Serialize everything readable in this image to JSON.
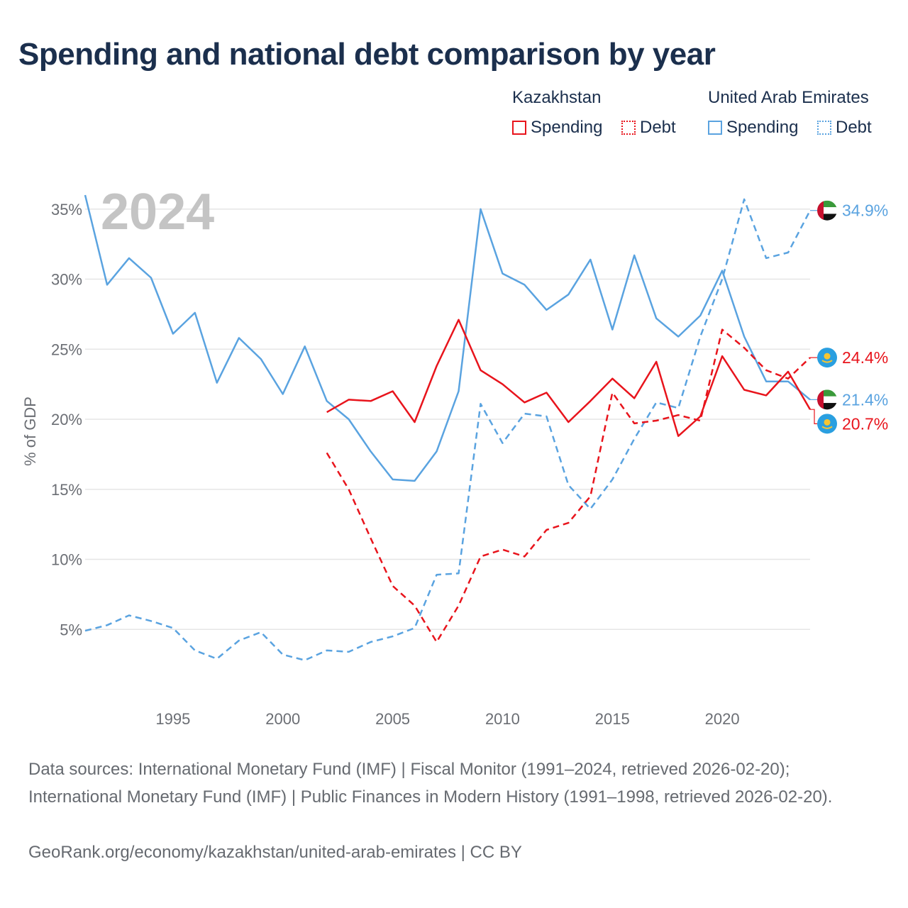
{
  "title": "Spending and national debt comparison by year",
  "legend": {
    "groups": [
      {
        "country": "Kazakhstan",
        "spending_label": "Spending",
        "debt_label": "Debt",
        "color": "#e8141c"
      },
      {
        "country": "United Arab Emirates",
        "spending_label": "Spending",
        "debt_label": "Debt",
        "color": "#5aa3e0"
      }
    ]
  },
  "footer": {
    "sources": "Data sources: International Monetary Fund (IMF) | Fiscal Monitor (1991–2024, retrieved 2026-02-20); International Monetary Fund (IMF) | Public Finances in Modern History (1991–1998, retrieved 2026-02-20).",
    "credit": "GeoRank.org/economy/kazakhstan/united-arab-emirates | CC BY"
  },
  "chart_data": {
    "type": "line",
    "year_watermark": "2024",
    "ylabel": "% of GDP",
    "xlabel": "",
    "xlim": [
      1991,
      2024
    ],
    "ylim": [
      0,
      37
    ],
    "x_ticks": [
      1995,
      2000,
      2005,
      2010,
      2015,
      2020
    ],
    "y_ticks": [
      5,
      10,
      15,
      20,
      25,
      30,
      35
    ],
    "y_tick_labels": [
      "5%",
      "10%",
      "15%",
      "20%",
      "25%",
      "30%",
      "35%"
    ],
    "grid": true,
    "series": [
      {
        "name": "United Arab Emirates Spending",
        "country": "United Arab Emirates",
        "measure": "Spending",
        "color": "#5aa3e0",
        "dashed": false,
        "flag": "uae",
        "end_label": "21.4%",
        "x": [
          1991,
          1992,
          1993,
          1994,
          1995,
          1996,
          1997,
          1998,
          1999,
          2000,
          2001,
          2002,
          2003,
          2004,
          2005,
          2006,
          2007,
          2008,
          2009,
          2010,
          2011,
          2012,
          2013,
          2014,
          2015,
          2016,
          2017,
          2018,
          2019,
          2020,
          2021,
          2022,
          2023,
          2024
        ],
        "values": [
          36.0,
          29.6,
          31.5,
          30.1,
          26.1,
          27.6,
          22.6,
          25.8,
          24.3,
          21.8,
          25.2,
          21.3,
          20.0,
          17.7,
          15.7,
          15.6,
          17.7,
          22.0,
          35.0,
          30.4,
          29.6,
          27.8,
          28.9,
          31.4,
          26.4,
          31.7,
          27.2,
          25.9,
          27.4,
          30.6,
          25.9,
          22.7,
          22.7,
          21.4
        ]
      },
      {
        "name": "United Arab Emirates Debt",
        "country": "United Arab Emirates",
        "measure": "Debt",
        "color": "#5aa3e0",
        "dashed": true,
        "flag": "uae",
        "end_label": "34.9%",
        "x": [
          1991,
          1992,
          1993,
          1994,
          1995,
          1996,
          1997,
          1998,
          1999,
          2000,
          2001,
          2002,
          2003,
          2004,
          2005,
          2006,
          2007,
          2008,
          2009,
          2010,
          2011,
          2012,
          2013,
          2014,
          2015,
          2016,
          2017,
          2018,
          2019,
          2020,
          2021,
          2022,
          2023,
          2024
        ],
        "values": [
          4.9,
          5.3,
          6.0,
          5.6,
          5.1,
          3.5,
          2.9,
          4.2,
          4.8,
          3.2,
          2.8,
          3.5,
          3.4,
          4.1,
          4.5,
          5.1,
          8.9,
          9.0,
          21.1,
          18.3,
          20.4,
          20.2,
          15.3,
          13.6,
          15.7,
          18.6,
          21.2,
          20.8,
          25.9,
          30.0,
          35.7,
          31.5,
          31.9,
          34.9
        ]
      },
      {
        "name": "Kazakhstan Spending",
        "country": "Kazakhstan",
        "measure": "Spending",
        "color": "#e8141c",
        "dashed": false,
        "flag": "kaz",
        "end_label": "20.7%",
        "x": [
          2002,
          2003,
          2004,
          2005,
          2006,
          2007,
          2008,
          2009,
          2010,
          2011,
          2012,
          2013,
          2014,
          2015,
          2016,
          2017,
          2018,
          2019,
          2020,
          2021,
          2022,
          2023,
          2024
        ],
        "values": [
          20.5,
          21.4,
          21.3,
          22.0,
          19.8,
          23.8,
          27.1,
          23.5,
          22.5,
          21.2,
          21.9,
          19.8,
          21.3,
          22.9,
          21.5,
          24.1,
          18.8,
          20.2,
          24.5,
          22.1,
          21.7,
          23.4,
          20.7
        ]
      },
      {
        "name": "Kazakhstan Debt",
        "country": "Kazakhstan",
        "measure": "Debt",
        "color": "#e8141c",
        "dashed": true,
        "flag": "kaz",
        "end_label": "24.4%",
        "x": [
          2002,
          2003,
          2004,
          2005,
          2006,
          2007,
          2008,
          2009,
          2010,
          2011,
          2012,
          2013,
          2014,
          2015,
          2016,
          2017,
          2018,
          2019,
          2020,
          2021,
          2022,
          2023,
          2024
        ],
        "values": [
          17.6,
          15.0,
          11.5,
          8.1,
          6.7,
          4.1,
          6.7,
          10.2,
          10.7,
          10.2,
          12.1,
          12.6,
          14.5,
          21.9,
          19.7,
          19.9,
          20.3,
          19.9,
          26.4,
          25.1,
          23.5,
          22.9,
          24.4
        ]
      }
    ]
  }
}
